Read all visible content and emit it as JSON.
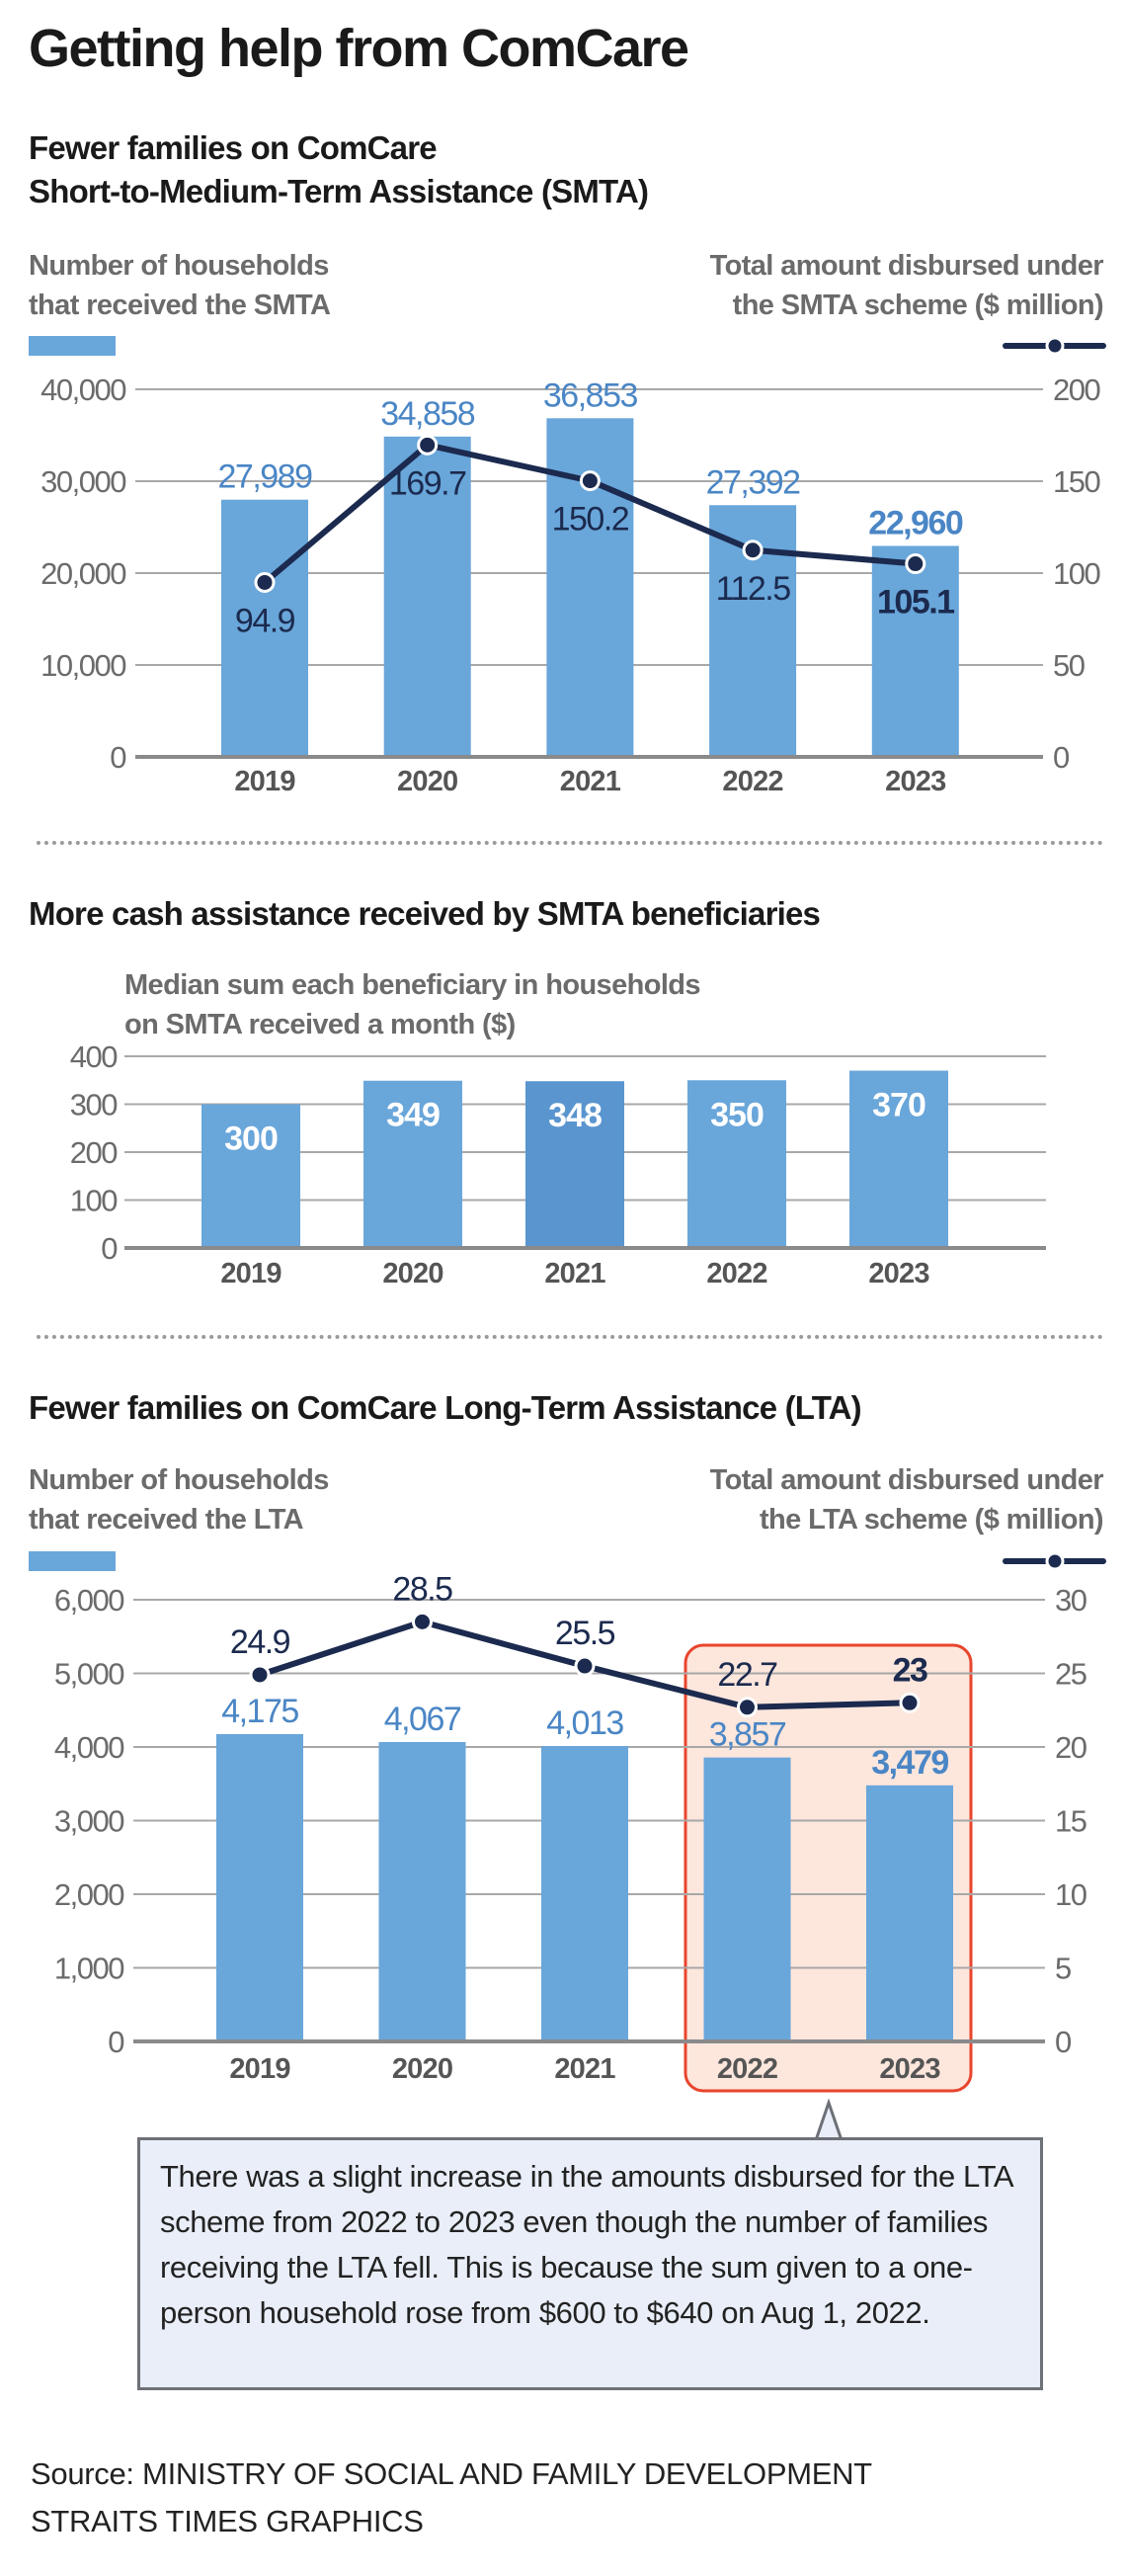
{
  "title": "Getting help from ComCare",
  "colors": {
    "bar": "#69a6da",
    "bar_highlight": "#5a95cf",
    "line": "#1b2a4e",
    "bar_label": "#4a86c5",
    "highlight_box": "#e8452c",
    "highlight_fill": "#fde6dc",
    "callout_fill": "#e9eef8"
  },
  "chart_data": [
    {
      "type": "bar+line",
      "title": "Fewer families on ComCare",
      "title_line2": "Short-to-Medium-Term Assistance (SMTA)",
      "categories": [
        "2019",
        "2020",
        "2021",
        "2022",
        "2023"
      ],
      "left_axis": {
        "label_line1": "Number of households",
        "label_line2": "that received the SMTA",
        "ylim": [
          0,
          40000
        ],
        "ticks": [
          "0",
          "10,000",
          "20,000",
          "30,000",
          "40,000"
        ]
      },
      "right_axis": {
        "label_line1": "Total amount disbursed under",
        "label_line2": "the SMTA scheme ($ million)",
        "ylim": [
          0,
          200
        ],
        "ticks": [
          "0",
          "50",
          "100",
          "150",
          "200"
        ]
      },
      "bars": {
        "values": [
          27989,
          34858,
          36853,
          27392,
          22960
        ],
        "labels": [
          "27,989",
          "34,858",
          "36,853",
          "27,392",
          "22,960"
        ]
      },
      "line": {
        "values": [
          94.9,
          169.7,
          150.2,
          112.5,
          105.1
        ],
        "labels": [
          "94.9",
          "169.7",
          "150.2",
          "112.5",
          "105.1"
        ]
      },
      "legend": "top",
      "grid": true
    },
    {
      "type": "bar",
      "title": "More cash assistance received by SMTA beneficiaries",
      "ylabel_line1": "Median sum each beneficiary in households",
      "ylabel_line2": "on SMTA received a month ($)",
      "categories": [
        "2019",
        "2020",
        "2021",
        "2022",
        "2023"
      ],
      "values": [
        300,
        349,
        348,
        350,
        370
      ],
      "labels": [
        "300",
        "349",
        "348",
        "350",
        "370"
      ],
      "ylim": [
        0,
        400
      ],
      "ticks": [
        "0",
        "100",
        "200",
        "300",
        "400"
      ],
      "grid": true
    },
    {
      "type": "bar+line",
      "title": "Fewer families on ComCare Long-Term Assistance (LTA)",
      "categories": [
        "2019",
        "2020",
        "2021",
        "2022",
        "2023"
      ],
      "left_axis": {
        "label_line1": "Number of households",
        "label_line2": "that received the LTA",
        "ylim": [
          0,
          6000
        ],
        "ticks": [
          "0",
          "1,000",
          "2,000",
          "3,000",
          "4,000",
          "5,000",
          "6,000"
        ]
      },
      "right_axis": {
        "label_line1": "Total amount disbursed under",
        "label_line2": "the LTA scheme ($ million)",
        "ylim": [
          0,
          30
        ],
        "ticks": [
          "0",
          "5",
          "10",
          "15",
          "20",
          "25",
          "30"
        ]
      },
      "bars": {
        "values": [
          4175,
          4067,
          4013,
          3857,
          3479
        ],
        "labels": [
          "4,175",
          "4,067",
          "4,013",
          "3,857",
          "3,479"
        ]
      },
      "line": {
        "values": [
          24.9,
          28.5,
          25.5,
          22.7,
          23
        ],
        "labels": [
          "24.9",
          "28.5",
          "25.5",
          "22.7",
          "23"
        ]
      },
      "highlighted_categories": [
        "2022",
        "2023"
      ],
      "annotation": "There was a slight increase in the amounts disbursed for the LTA scheme from 2022 to 2023 even though the number of families receiving the LTA fell. This is because the sum given to a one-person household rose from $600 to $640 on Aug 1, 2022.",
      "legend": "top",
      "grid": true
    }
  ],
  "source": {
    "line1": "Source: MINISTRY OF SOCIAL AND FAMILY DEVELOPMENT",
    "line2": "STRAITS TIMES GRAPHICS"
  }
}
